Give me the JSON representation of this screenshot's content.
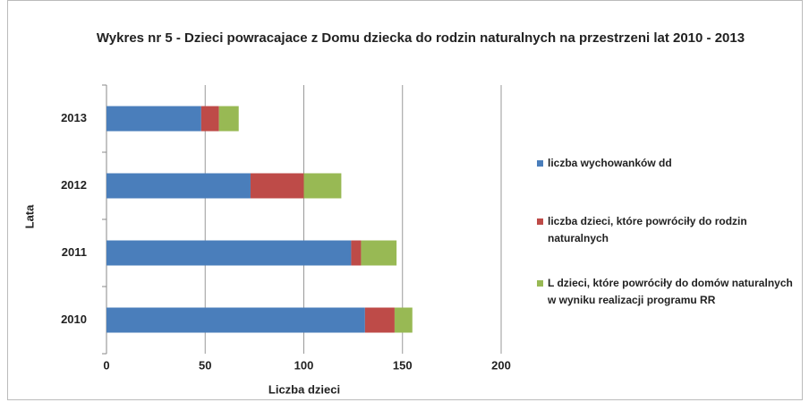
{
  "chart_data": {
    "type": "stacked_barh",
    "title": "Wykres nr 5 - Dzieci powracajace z Domu dziecka do rodzin naturalnych na przestrzeni lat 2010 - 2013",
    "x_label": "Liczba dzieci",
    "y_label": "Lata",
    "categories": [
      "2010",
      "2011",
      "2012",
      "2013"
    ],
    "series": [
      {
        "name": "liczba wychowanków dd",
        "color": "#4a7ebb",
        "values": [
          131,
          124,
          73,
          48
        ]
      },
      {
        "name": "liczba dzieci, które powróciły do rodzin naturalnych",
        "color": "#be4b48",
        "values": [
          15,
          5,
          27,
          9
        ]
      },
      {
        "name": "L dzieci, które powróciły do domów naturalnych w wyniku realizacji programu RR",
        "color": "#98b954",
        "values": [
          9,
          18,
          19,
          10
        ]
      }
    ],
    "xlim": [
      0,
      200
    ],
    "xticks": [
      0,
      50,
      100,
      150,
      200
    ],
    "grid": true,
    "legend": "right"
  }
}
